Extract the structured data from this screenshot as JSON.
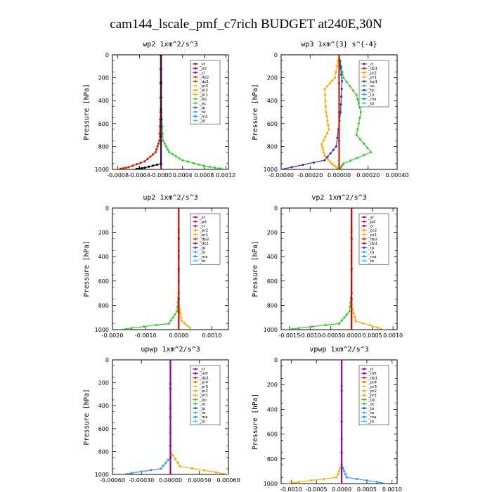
{
  "figure_title": "cam144_lscale_pmf_c7rich  BUDGET at240E,30N",
  "chart_data": [
    {
      "type": "line",
      "title": "wp2   1xm^2/s^3",
      "ylabel": "Pressure  [hPa]",
      "xlim": [
        -0.0009,
        0.00125
      ],
      "ylim": [
        1000,
        0
      ],
      "xticks": [
        "-0.0008",
        "-0.0004",
        "-0.0000",
        "0.0004",
        "0.0008",
        "0.0012"
      ],
      "yticks": [
        "0",
        "200",
        "400",
        "600",
        "800",
        "1000"
      ],
      "legend": {
        "position": "top-right",
        "entries": [
          "_sf",
          "_pd",
          "_cl",
          "_dp2",
          "_dp1",
          "_pr3",
          "_pr2",
          "_pr1",
          "_bp",
          "_ac",
          "_tp",
          "_ta",
          "_ma",
          "_bt"
        ]
      },
      "series": [
        {
          "name": "_dp1",
          "color": "#cc2200",
          "points": [
            [
              -1e-05,
              0
            ],
            [
              -1e-05,
              500
            ],
            [
              -3e-05,
              750
            ],
            [
              -0.0001,
              850
            ],
            [
              -0.0003,
              930
            ],
            [
              -0.0006,
              980
            ],
            [
              -0.0008,
              1000
            ]
          ]
        },
        {
          "name": "_bp",
          "color": "#33cc33",
          "points": [
            [
              1e-05,
              0
            ],
            [
              1e-05,
              500
            ],
            [
              4e-05,
              750
            ],
            [
              0.00015,
              850
            ],
            [
              0.0004,
              920
            ],
            [
              0.0008,
              970
            ],
            [
              0.0012,
              1000
            ]
          ]
        },
        {
          "name": "_sf",
          "color": "#9900aa",
          "points": [
            [
              0,
              0
            ],
            [
              0,
              1000
            ]
          ]
        },
        {
          "name": "_ta",
          "color": "#000000",
          "points": [
            [
              0,
              0
            ],
            [
              0,
              950
            ],
            [
              -0.0003,
              985
            ],
            [
              -0.0005,
              1000
            ]
          ]
        }
      ]
    },
    {
      "type": "line",
      "title": "wp3   1xm^{3} s^{-4}",
      "ylabel": "Pressure  [hPa]",
      "xlim": [
        -0.0004,
        0.0004
      ],
      "ylim": [
        1000,
        0
      ],
      "xticks": [
        "-0.00040",
        "-0.00020",
        "0.00000",
        "0.00020",
        "0.00040"
      ],
      "yticks": [
        "0",
        "200",
        "400",
        "600",
        "800",
        "1000"
      ],
      "legend": {
        "position": "top-right",
        "entries": [
          "_cl",
          "_dp1",
          "_pr2",
          "_pr1",
          "_bp1",
          "_ac",
          "_tp",
          "_ta",
          "_ma",
          "_bt"
        ]
      },
      "series": [
        {
          "name": "_ac",
          "color": "#33cc33",
          "points": [
            [
              0,
              0
            ],
            [
              3e-05,
              200
            ],
            [
              0.00012,
              350
            ],
            [
              0.00015,
              500
            ],
            [
              0.00012,
              700
            ],
            [
              0.00022,
              850
            ],
            [
              3e-05,
              950
            ],
            [
              0,
              1000
            ]
          ]
        },
        {
          "name": "_pr1",
          "color": "#ffaa00",
          "points": [
            [
              0,
              0
            ],
            [
              -3e-05,
              200
            ],
            [
              -0.0001,
              300
            ],
            [
              -9e-05,
              500
            ],
            [
              -7e-05,
              650
            ],
            [
              -0.00012,
              780
            ],
            [
              -0.0001,
              880
            ],
            [
              -5e-05,
              950
            ],
            [
              0,
              1000
            ]
          ]
        },
        {
          "name": "_bp1",
          "color": "#3333cc",
          "points": [
            [
              0,
              0
            ],
            [
              2e-05,
              230
            ],
            [
              1e-05,
              500
            ],
            [
              -2e-05,
              800
            ],
            [
              -0.0001,
              920
            ],
            [
              -0.0004,
              1000
            ]
          ]
        },
        {
          "name": "_dp1",
          "color": "#cc2200",
          "points": [
            [
              0,
              0
            ],
            [
              0,
              1000
            ]
          ]
        }
      ]
    },
    {
      "type": "line",
      "title": "up2   1xm^2/s^3",
      "ylabel": "Pressure  [hPa]",
      "xlim": [
        -0.002,
        0.0015
      ],
      "ylim": [
        1000,
        0
      ],
      "xticks": [
        "-0.0020",
        "-0.0010",
        "0.0000",
        "0.0010"
      ],
      "yticks": [
        "0",
        "200",
        "400",
        "600",
        "800",
        "1000"
      ],
      "legend": {
        "position": "top-right",
        "entries": [
          "_sf",
          "_pd",
          "_cl",
          "_pr2",
          "_pr1",
          "_dp2",
          "_dp1",
          "_tp",
          "_ta",
          "_ma",
          "_bt"
        ]
      },
      "series": [
        {
          "name": "_dp1",
          "color": "#33cc33",
          "points": [
            [
              0,
              0
            ],
            [
              0,
              700
            ],
            [
              -5e-05,
              850
            ],
            [
              -0.0003,
              950
            ],
            [
              -0.0018,
              1000
            ]
          ]
        },
        {
          "name": "_pr1",
          "color": "#ffaa00",
          "points": [
            [
              0,
              0
            ],
            [
              0,
              800
            ],
            [
              0.0001,
              930
            ],
            [
              0.0004,
              1000
            ]
          ]
        },
        {
          "name": "_sf",
          "color": "#cc0000",
          "points": [
            [
              0,
              0
            ],
            [
              0,
              1000
            ]
          ]
        }
      ]
    },
    {
      "type": "line",
      "title": "vp2   1xm^2/s^3",
      "ylabel": "Pressure  [hPa]",
      "xlim": [
        -0.0017,
        0.0011
      ],
      "ylim": [
        1000,
        0
      ],
      "xticks": [
        "-0.0015",
        "-0.0010",
        "-0.0005",
        "0.0000",
        "0.0005",
        "0.0010"
      ],
      "yticks": [
        "0",
        "200",
        "400",
        "600",
        "800",
        "1000"
      ],
      "legend": {
        "position": "top-right",
        "entries": [
          "_sf",
          "_pd",
          "_cl",
          "_pr2",
          "_pr1",
          "_dp2",
          "_dp1",
          "_tp",
          "_ta",
          "_ma",
          "_bt"
        ]
      },
      "series": [
        {
          "name": "_dp1",
          "color": "#33cc33",
          "points": [
            [
              0,
              0
            ],
            [
              0,
              700
            ],
            [
              -5e-05,
              850
            ],
            [
              -0.0003,
              950
            ],
            [
              -0.0016,
              1000
            ]
          ]
        },
        {
          "name": "_pr1",
          "color": "#ffaa00",
          "points": [
            [
              0,
              0
            ],
            [
              0,
              800
            ],
            [
              0.0001,
              930
            ],
            [
              0.0008,
              1000
            ]
          ]
        },
        {
          "name": "_sf",
          "color": "#cc0000",
          "points": [
            [
              0,
              0
            ],
            [
              0,
              1000
            ]
          ]
        }
      ]
    },
    {
      "type": "line",
      "title": "upwp   1xm^2/s^3",
      "ylabel": "Pressure  [hPa]",
      "xlim": [
        -0.0006,
        0.0006
      ],
      "ylim": [
        1000,
        0
      ],
      "xticks": [
        "-0.00060",
        "-0.00030",
        "0.00000",
        "0.00030",
        "0.00060"
      ],
      "yticks": [
        "0",
        "200",
        "400",
        "600",
        "800",
        "1000"
      ],
      "legend": {
        "position": "top-right",
        "entries": [
          "_cl",
          "_mfl",
          "_dp1",
          "_pr4",
          "_pr3",
          "_pr2",
          "_pr1",
          "_bp",
          "_ac",
          "_tp",
          "_ta",
          "_ma",
          "_bt"
        ]
      },
      "series": [
        {
          "name": "_pr1",
          "color": "#ffaa00",
          "points": [
            [
              0,
              0
            ],
            [
              0,
              800
            ],
            [
              0.0001,
              930
            ],
            [
              0.0006,
              1000
            ]
          ]
        },
        {
          "name": "_ta",
          "color": "#3399ff",
          "points": [
            [
              0,
              0
            ],
            [
              0,
              850
            ],
            [
              -0.0001,
              950
            ],
            [
              -0.0005,
              1000
            ]
          ]
        },
        {
          "name": "_cl",
          "color": "#9900aa",
          "points": [
            [
              0,
              0
            ],
            [
              0,
              1000
            ]
          ]
        }
      ]
    },
    {
      "type": "line",
      "title": "vpwp   1xm^2/s^3",
      "ylabel": "Pressure  [hPa]",
      "xlim": [
        -0.0012,
        0.0011
      ],
      "ylim": [
        1000,
        0
      ],
      "xticks": [
        "-0.0010",
        "-0.0005",
        "0.0000",
        "0.0005",
        "0.0010"
      ],
      "yticks": [
        "0",
        "200",
        "400",
        "600",
        "800",
        "1000"
      ],
      "legend": {
        "position": "top-right",
        "entries": [
          "_cl",
          "_mfl",
          "_dp1",
          "_pr4",
          "_pr3",
          "_pr2",
          "_pr1",
          "_bp",
          "_ac",
          "_tp",
          "_ta",
          "_ma",
          "_bt"
        ]
      },
      "series": [
        {
          "name": "_pr1",
          "color": "#ffaa00",
          "points": [
            [
              0,
              0
            ],
            [
              0,
              850
            ],
            [
              -0.0001,
              950
            ],
            [
              -0.0011,
              1000
            ]
          ]
        },
        {
          "name": "_ta",
          "color": "#3399ff",
          "points": [
            [
              0,
              0
            ],
            [
              0,
              850
            ],
            [
              0.0001,
              950
            ],
            [
              0.0009,
              1000
            ]
          ]
        },
        {
          "name": "_cl",
          "color": "#9900aa",
          "points": [
            [
              0,
              0
            ],
            [
              0,
              1000
            ]
          ]
        }
      ]
    }
  ],
  "legend_colors": {
    "_sf": "#990066",
    "_pd": "#cc0033",
    "_cl": "#9900aa",
    "_dp2": "#ff2200",
    "_dp1": "#cc2200",
    "_pr3": "#ffcc00",
    "_pr2": "#ff9900",
    "_pr1": "#ffaa00",
    "_pr4": "#ff6600",
    "_bp": "#33cc33",
    "_bp1": "#3333cc",
    "_ac": "#33cc33",
    "_tp": "#3333ff",
    "_ta": "#3399ff",
    "_ma": "#0099cc",
    "_bt": "#33ccff",
    "_mfl": "#6600cc"
  }
}
